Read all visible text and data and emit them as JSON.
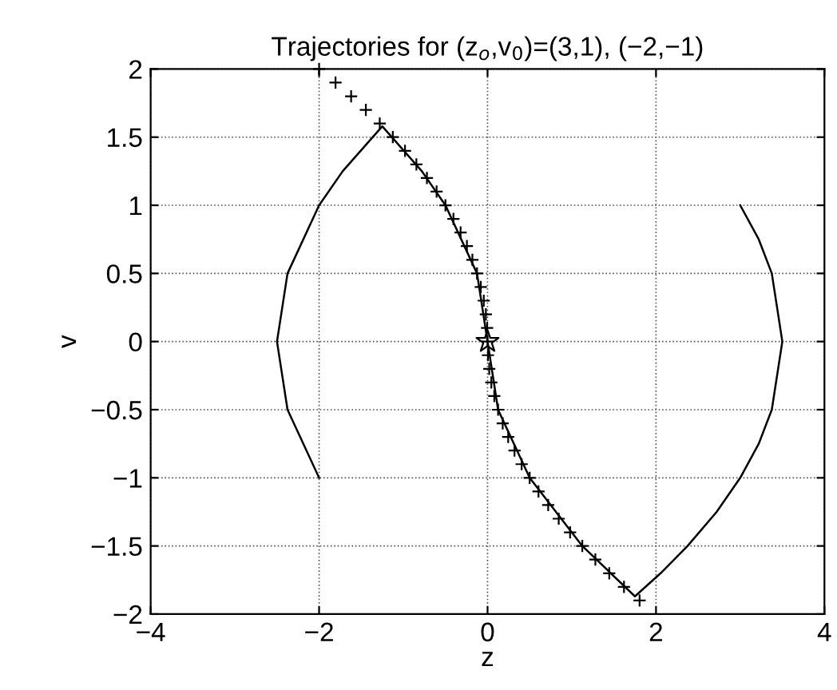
{
  "chart_data": {
    "type": "line",
    "title": "Trajectories for (z$_{o}$,v$_{0}$)=(3,1), (−2,−1)",
    "xlabel": "z",
    "ylabel": "v",
    "xlim": [
      -4,
      4
    ],
    "ylim": [
      -2,
      2
    ],
    "xticks": [
      -4,
      -2,
      0,
      2,
      4
    ],
    "yticks": [
      -2,
      -1.5,
      -1,
      -0.5,
      0,
      0.5,
      1,
      1.5,
      2
    ],
    "grid": true,
    "series": [
      {
        "color": "#000000",
        "line_style": "solid",
        "marker": "none",
        "x": [
          3,
          3.22,
          3.375,
          3.5,
          3.375,
          3.22,
          3,
          2.72,
          2.375,
          2.055,
          1.75,
          1.125,
          0.5,
          0.125,
          0
        ],
        "values": [
          1,
          0.75,
          0.5,
          0,
          -0.5,
          -0.75,
          -1,
          -1.25,
          -1.5,
          -1.7,
          -1.87,
          -1.5,
          -1,
          -0.5,
          0
        ]
      },
      {
        "color": "#000000",
        "line_style": "solid",
        "marker": "none",
        "x": [
          -2,
          -2.375,
          -2.5,
          -2.375,
          -2,
          -1.72,
          -1.25,
          -0.78,
          -0.5,
          -0.125,
          0
        ],
        "values": [
          -1,
          -0.5,
          0,
          0.5,
          1,
          1.25,
          1.58,
          1.25,
          1,
          0.5,
          0
        ]
      },
      {
        "type": "scatter",
        "color": "#000000",
        "marker": "cross",
        "x": [
          -2,
          -1.805,
          -1.62,
          -1.445,
          -1.28,
          -1.125,
          -0.98,
          -0.845,
          -0.72,
          -0.605,
          -0.5,
          -0.405,
          -0.32,
          -0.245,
          -0.18,
          -0.125,
          -0.08,
          -0.045,
          -0.02,
          -0.005,
          0,
          0.005,
          0.02,
          0.045,
          0.08,
          0.125,
          0.18,
          0.245,
          0.32,
          0.405,
          0.5,
          0.605,
          0.72,
          0.845,
          0.98,
          1.125,
          1.28,
          1.445,
          1.62,
          1.805
        ],
        "values": [
          2,
          1.9,
          1.8,
          1.7,
          1.6,
          1.5,
          1.4,
          1.3,
          1.2,
          1.1,
          1,
          0.9,
          0.8,
          0.7,
          0.6,
          0.5,
          0.4,
          0.3,
          0.2,
          0.1,
          0,
          -0.1,
          -0.2,
          -0.3,
          -0.4,
          -0.5,
          -0.6,
          -0.7,
          -0.8,
          -0.9,
          -1,
          -1.1,
          -1.2,
          -1.3,
          -1.4,
          -1.5,
          -1.6,
          -1.7,
          -1.8,
          -1.9
        ]
      },
      {
        "type": "scatter",
        "color": "#000000",
        "marker": "star",
        "x": [
          0
        ],
        "values": [
          0
        ]
      }
    ]
  }
}
